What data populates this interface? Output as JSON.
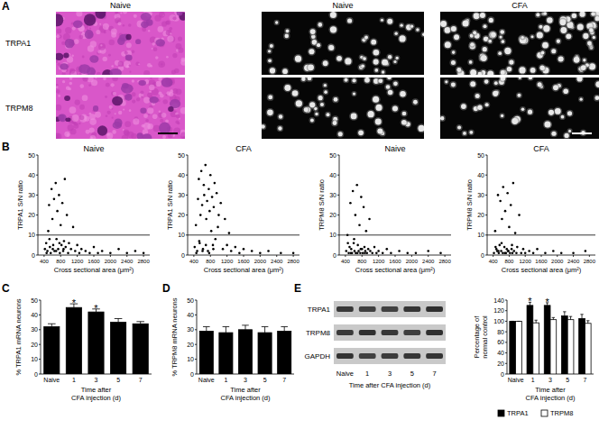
{
  "panel_labels": [
    "A",
    "B",
    "C",
    "D",
    "E"
  ],
  "micrographs": {
    "columns": [
      "Naive",
      "Naive",
      "CFA"
    ],
    "rows": [
      "TRPA1",
      "TRPM8"
    ]
  },
  "gel": {
    "rows": [
      "TRPA1",
      "TRPM8",
      "GAPDH"
    ],
    "lanes": [
      "Naive",
      "1",
      "3",
      "5",
      "7"
    ],
    "xlabel": "Time after CFA injection (d)"
  },
  "chart_data": [
    {
      "type": "scatter",
      "title": "Naive",
      "xlabel": "Cross sectional area (μm²)",
      "ylabel": "TRPA1 S/N ratio",
      "color": "#000000",
      "x": [
        420,
        450,
        480,
        500,
        520,
        540,
        560,
        580,
        600,
        620,
        640,
        650,
        680,
        700,
        720,
        740,
        760,
        780,
        800,
        820,
        840,
        860,
        880,
        900,
        920,
        950,
        980,
        1000,
        1050,
        1100,
        1150,
        1200,
        1250,
        1300,
        1400,
        1500,
        1600,
        1700,
        1800,
        2000,
        2200,
        2400,
        2600,
        2800,
        460,
        530,
        610,
        690,
        770,
        870
      ],
      "values": [
        3,
        6,
        2,
        12,
        25,
        4,
        1,
        33,
        18,
        5,
        28,
        2,
        36,
        8,
        22,
        3,
        30,
        1,
        15,
        5,
        26,
        2,
        7,
        38,
        4,
        20,
        1,
        6,
        3,
        14,
        2,
        5,
        1,
        3,
        2,
        1,
        4,
        1,
        2,
        1,
        3,
        1,
        2,
        1,
        1,
        8,
        3,
        2,
        6,
        3
      ],
      "threshold": 10,
      "xlim": [
        250,
        2950
      ],
      "xticks": [
        400,
        800,
        1200,
        1600,
        2000,
        2400,
        2800
      ],
      "ylim": [
        0,
        50
      ],
      "yticks": [
        0,
        10,
        20,
        30,
        40,
        50
      ]
    },
    {
      "type": "scatter",
      "title": "CFA",
      "xlabel": "Cross sectional area (μm²)",
      "ylabel": "TRPA1 S/N ratio",
      "color": "#000000",
      "x": [
        420,
        450,
        480,
        500,
        520,
        540,
        560,
        580,
        600,
        620,
        640,
        650,
        680,
        700,
        720,
        740,
        760,
        780,
        800,
        820,
        840,
        860,
        880,
        900,
        920,
        950,
        980,
        1000,
        1050,
        1100,
        1150,
        1200,
        1250,
        1300,
        1400,
        1500,
        1600,
        1800,
        2000,
        2200,
        2500,
        2800,
        460,
        530,
        610,
        690,
        770,
        870
      ],
      "values": [
        4,
        15,
        2,
        28,
        38,
        6,
        20,
        42,
        25,
        3,
        35,
        30,
        45,
        18,
        27,
        2,
        33,
        22,
        40,
        12,
        29,
        5,
        24,
        36,
        8,
        31,
        14,
        20,
        26,
        3,
        18,
        5,
        11,
        2,
        4,
        1,
        3,
        2,
        1,
        2,
        1,
        1,
        1,
        7,
        2,
        5,
        1,
        3
      ],
      "threshold": 10,
      "xlim": [
        250,
        2950
      ],
      "xticks": [
        400,
        800,
        1200,
        1600,
        2000,
        2400,
        2800
      ],
      "ylim": [
        0,
        50
      ],
      "yticks": [
        0,
        10,
        20,
        30,
        40,
        50
      ]
    },
    {
      "type": "scatter",
      "title": "Naive",
      "xlabel": "Cross sectional area (μm²)",
      "ylabel": "TRPM8 S/N ratio",
      "color": "#000000",
      "x": [
        420,
        450,
        480,
        500,
        520,
        540,
        560,
        580,
        600,
        620,
        640,
        650,
        680,
        700,
        720,
        740,
        760,
        780,
        800,
        820,
        840,
        860,
        880,
        900,
        920,
        950,
        980,
        1000,
        1050,
        1100,
        1150,
        1200,
        1300,
        1400,
        1500,
        1700,
        1900,
        2100,
        2400,
        2700,
        460,
        530,
        610,
        690,
        770,
        870
      ],
      "values": [
        2,
        10,
        1,
        4,
        26,
        3,
        1,
        32,
        6,
        2,
        20,
        1,
        35,
        5,
        2,
        15,
        1,
        29,
        3,
        1,
        24,
        4,
        2,
        12,
        1,
        3,
        18,
        2,
        1,
        4,
        1,
        2,
        1,
        3,
        1,
        2,
        1,
        1,
        2,
        1,
        6,
        1,
        8,
        1,
        3,
        1
      ],
      "threshold": 10,
      "xlim": [
        250,
        2950
      ],
      "xticks": [
        400,
        800,
        1200,
        1600,
        2000,
        2400,
        2800
      ],
      "ylim": [
        0,
        50
      ],
      "yticks": [
        0,
        10,
        20,
        30,
        40,
        50
      ]
    },
    {
      "type": "scatter",
      "title": "CFA",
      "xlabel": "Cross sectional area (μm²)",
      "ylabel": "TRPM8 S/N ratio",
      "color": "#000000",
      "x": [
        420,
        450,
        480,
        500,
        520,
        540,
        560,
        580,
        600,
        620,
        640,
        650,
        680,
        700,
        720,
        740,
        760,
        780,
        800,
        820,
        840,
        860,
        880,
        900,
        920,
        950,
        980,
        1000,
        1050,
        1100,
        1150,
        1200,
        1300,
        1400,
        1500,
        1700,
        1900,
        2100,
        2400,
        2700,
        460,
        530,
        610,
        690,
        770,
        870
      ],
      "values": [
        1,
        12,
        3,
        2,
        30,
        1,
        5,
        27,
        2,
        18,
        1,
        34,
        4,
        22,
        1,
        3,
        31,
        2,
        14,
        1,
        25,
        3,
        1,
        36,
        2,
        11,
        1,
        4,
        20,
        1,
        3,
        1,
        2,
        1,
        3,
        1,
        2,
        1,
        1,
        2,
        4,
        2,
        6,
        1,
        2,
        5
      ],
      "threshold": 10,
      "xlim": [
        250,
        2950
      ],
      "xticks": [
        400,
        800,
        1200,
        1600,
        2000,
        2400,
        2800
      ],
      "ylim": [
        0,
        50
      ],
      "yticks": [
        0,
        10,
        20,
        30,
        40,
        50
      ]
    },
    {
      "type": "bar",
      "ylabel": "% TRPA1 mRNA neurons",
      "xlabel": [
        "Time after",
        "CFA injection (d)"
      ],
      "categories": [
        "Naive",
        "1",
        "3",
        "5",
        "7"
      ],
      "values": [
        32,
        45,
        42,
        35,
        34
      ],
      "errors": [
        2,
        2.5,
        2,
        2.5,
        1.5
      ],
      "significance": [
        null,
        "*",
        "*",
        null,
        null
      ],
      "color": "#000000",
      "ylim": [
        0,
        50
      ],
      "yticks": [
        0,
        10,
        20,
        30,
        40,
        50
      ]
    },
    {
      "type": "bar",
      "ylabel": "% TRPM8 mRNA neurons",
      "xlabel": [
        "Time after",
        "CFA injection (d)"
      ],
      "categories": [
        "Naive",
        "1",
        "3",
        "5",
        "7"
      ],
      "values": [
        29,
        28,
        30,
        28,
        29
      ],
      "errors": [
        3,
        4,
        3,
        4,
        3
      ],
      "color": "#000000",
      "ylim": [
        0,
        50
      ],
      "yticks": [
        0,
        10,
        20,
        30,
        40,
        50
      ]
    },
    {
      "type": "bar",
      "ylabel": [
        "Percentage of",
        "normal control"
      ],
      "xlabel": [
        "Time after",
        "CFA injection (d)"
      ],
      "categories": [
        "Naive",
        "1",
        "3",
        "5",
        "7"
      ],
      "series": [
        {
          "name": "TRPA1",
          "color": "#000000",
          "values": [
            100,
            130,
            130,
            110,
            105
          ],
          "errors": [
            0,
            6,
            5,
            8,
            8
          ],
          "significance": [
            null,
            "*",
            "*",
            null,
            null
          ]
        },
        {
          "name": "TRPM8",
          "color": "#ffffff",
          "values": [
            100,
            97,
            103,
            103,
            96
          ],
          "errors": [
            0,
            5,
            4,
            6,
            5
          ]
        }
      ],
      "ylim": [
        0,
        140
      ],
      "yticks": [
        0,
        20,
        40,
        60,
        80,
        100,
        120,
        140
      ],
      "legend": "bottom"
    }
  ]
}
